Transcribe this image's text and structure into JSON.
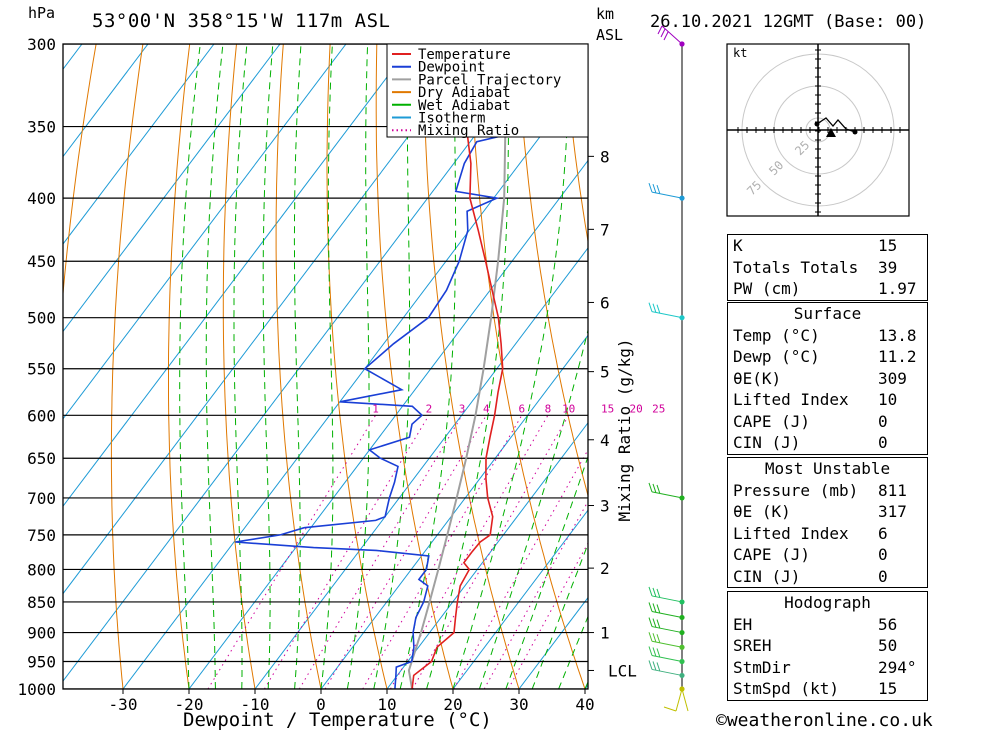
{
  "header": {
    "pressure_unit": "hPa",
    "location": "53°00'N  358°15'W  117m  ASL",
    "km_unit": "km",
    "km_unit2": "ASL",
    "datetime": "26.10.2021  12GMT  (Base: 00)"
  },
  "footer": {
    "copyright": "©weatheronline.co.uk"
  },
  "colors": {
    "temperature": "#e02020",
    "dewpoint": "#1a3fd6",
    "parcel": "#a0a0a0",
    "dry_adiabat": "#e07800",
    "wet_adiabat": "#00b000",
    "isotherm": "#1e9bd6",
    "mixing_ratio": "#d0009a"
  },
  "chart_data": {
    "type": "line",
    "title": "53°00'N  358°15'W  117m  ASL",
    "xlabel": "Dewpoint / Temperature (°C)",
    "ylabel": "hPa",
    "y2label": "Mixing Ratio (g/kg)",
    "x_ticks": [
      -30,
      -20,
      -10,
      0,
      10,
      20,
      30,
      40
    ],
    "pressure_levels": [
      300,
      350,
      400,
      450,
      500,
      550,
      600,
      650,
      700,
      750,
      800,
      850,
      900,
      950,
      1000
    ],
    "ylim": [
      1000,
      300
    ],
    "km_ticks": [
      {
        "label": "8",
        "p": 370
      },
      {
        "label": "7",
        "p": 424
      },
      {
        "label": "6",
        "p": 486
      },
      {
        "label": "5",
        "p": 553
      },
      {
        "label": "4",
        "p": 628
      },
      {
        "label": "3",
        "p": 710
      },
      {
        "label": "2",
        "p": 798
      },
      {
        "label": "1",
        "p": 900
      },
      {
        "label": "LCL",
        "p": 966
      }
    ],
    "mixing_ratio_labels": [
      "1",
      "2",
      "3",
      "4",
      "6",
      "8",
      "10",
      "15",
      "20",
      "25"
    ],
    "legend": [
      "Temperature",
      "Dewpoint",
      "Parcel Trajectory",
      "Dry Adiabat",
      "Wet Adiabat",
      "Isotherm",
      "Mixing Ratio"
    ],
    "legend_position": "top-right",
    "series": [
      {
        "name": "Temperature",
        "points": [
          [
            1000,
            13.8
          ],
          [
            975,
            12.5
          ],
          [
            950,
            13.6
          ],
          [
            925,
            12.8
          ],
          [
            900,
            13.7
          ],
          [
            875,
            12.2
          ],
          [
            850,
            10.7
          ],
          [
            825,
            9.3
          ],
          [
            800,
            8.8
          ],
          [
            790,
            7.2
          ],
          [
            775,
            7.2
          ],
          [
            760,
            7.3
          ],
          [
            750,
            8.0
          ],
          [
            725,
            6.3
          ],
          [
            700,
            3.4
          ],
          [
            675,
            0.9
          ],
          [
            650,
            -1.4
          ],
          [
            625,
            -3.2
          ],
          [
            600,
            -5.0
          ],
          [
            575,
            -7.1
          ],
          [
            550,
            -9.1
          ],
          [
            525,
            -12.2
          ],
          [
            500,
            -15.6
          ],
          [
            475,
            -19.7
          ],
          [
            450,
            -24.0
          ],
          [
            425,
            -28.6
          ],
          [
            400,
            -33.6
          ],
          [
            375,
            -37.4
          ],
          [
            350,
            -42.3
          ],
          [
            340,
            -45.0
          ],
          [
            320,
            -49.2
          ],
          [
            300,
            -53.0
          ]
        ]
      },
      {
        "name": "Dewpoint",
        "points": [
          [
            1000,
            11.2
          ],
          [
            975,
            9.8
          ],
          [
            960,
            8.9
          ],
          [
            950,
            10.6
          ],
          [
            925,
            9.3
          ],
          [
            900,
            7.5
          ],
          [
            875,
            6.2
          ],
          [
            850,
            5.6
          ],
          [
            825,
            4.4
          ],
          [
            815,
            2.3
          ],
          [
            800,
            2.3
          ],
          [
            780,
            1.1
          ],
          [
            772,
            -7.5
          ],
          [
            768,
            -17.3
          ],
          [
            760,
            -29.8
          ],
          [
            750,
            -23.8
          ],
          [
            740,
            -21.0
          ],
          [
            730,
            -11.0
          ],
          [
            725,
            -10.0
          ],
          [
            700,
            -11.5
          ],
          [
            680,
            -12.5
          ],
          [
            660,
            -13.8
          ],
          [
            650,
            -17.4
          ],
          [
            640,
            -20.0
          ],
          [
            625,
            -15.4
          ],
          [
            610,
            -16.5
          ],
          [
            600,
            -16.0
          ],
          [
            590,
            -18.5
          ],
          [
            585,
            -30.0
          ],
          [
            572,
            -22.0
          ],
          [
            550,
            -30.0
          ],
          [
            525,
            -28.5
          ],
          [
            500,
            -26.2
          ],
          [
            475,
            -26.6
          ],
          [
            450,
            -28.0
          ],
          [
            425,
            -30.2
          ],
          [
            410,
            -32.5
          ],
          [
            400,
            -29.5
          ],
          [
            395,
            -36.5
          ],
          [
            375,
            -38.4
          ],
          [
            360,
            -39.0
          ],
          [
            355,
            -35.0
          ],
          [
            350,
            -27.0
          ],
          [
            345,
            -28.3
          ],
          [
            340,
            -24.5
          ],
          [
            330,
            -23.4
          ],
          [
            320,
            -21.5
          ],
          [
            300,
            -22.5
          ]
        ]
      },
      {
        "name": "Parcel Trajectory",
        "points": [
          [
            1000,
            13.8
          ],
          [
            966,
            11.2
          ],
          [
            900,
            8.7
          ],
          [
            850,
            6.5
          ],
          [
            800,
            4.1
          ],
          [
            750,
            1.5
          ],
          [
            700,
            -1.3
          ],
          [
            650,
            -4.4
          ],
          [
            600,
            -7.9
          ],
          [
            550,
            -12.0
          ],
          [
            500,
            -16.7
          ],
          [
            450,
            -22.1
          ],
          [
            400,
            -28.4
          ],
          [
            350,
            -36.4
          ],
          [
            300,
            -46.0
          ]
        ]
      }
    ]
  },
  "hodograph": {
    "unit": "kt",
    "ring_labels": [
      "25",
      "50",
      "75"
    ]
  },
  "indices": {
    "top": [
      {
        "label": "K",
        "value": "15"
      },
      {
        "label": "Totals Totals",
        "value": "39"
      },
      {
        "label": "PW (cm)",
        "value": "1.97"
      }
    ],
    "surface": {
      "title": "Surface",
      "rows": [
        {
          "label": "Temp (°C)",
          "value": "13.8"
        },
        {
          "label": "Dewp (°C)",
          "value": "11.2"
        },
        {
          "label": "θE(K)",
          "value": "309"
        },
        {
          "label": "Lifted Index",
          "value": "10"
        },
        {
          "label": "CAPE (J)",
          "value": "0"
        },
        {
          "label": "CIN (J)",
          "value": "0"
        }
      ]
    },
    "most_unstable": {
      "title": "Most Unstable",
      "rows": [
        {
          "label": "Pressure (mb)",
          "value": "811"
        },
        {
          "label": "θE (K)",
          "value": "317"
        },
        {
          "label": "Lifted Index",
          "value": "6"
        },
        {
          "label": "CAPE (J)",
          "value": "0"
        },
        {
          "label": "CIN (J)",
          "value": "0"
        }
      ]
    },
    "hodograph": {
      "title": "Hodograph",
      "rows": [
        {
          "label": "EH",
          "value": "56"
        },
        {
          "label": "SREH",
          "value": "50"
        },
        {
          "label": "StmDir",
          "value": "294°"
        },
        {
          "label": "StmSpd (kt)",
          "value": "15"
        }
      ]
    }
  }
}
